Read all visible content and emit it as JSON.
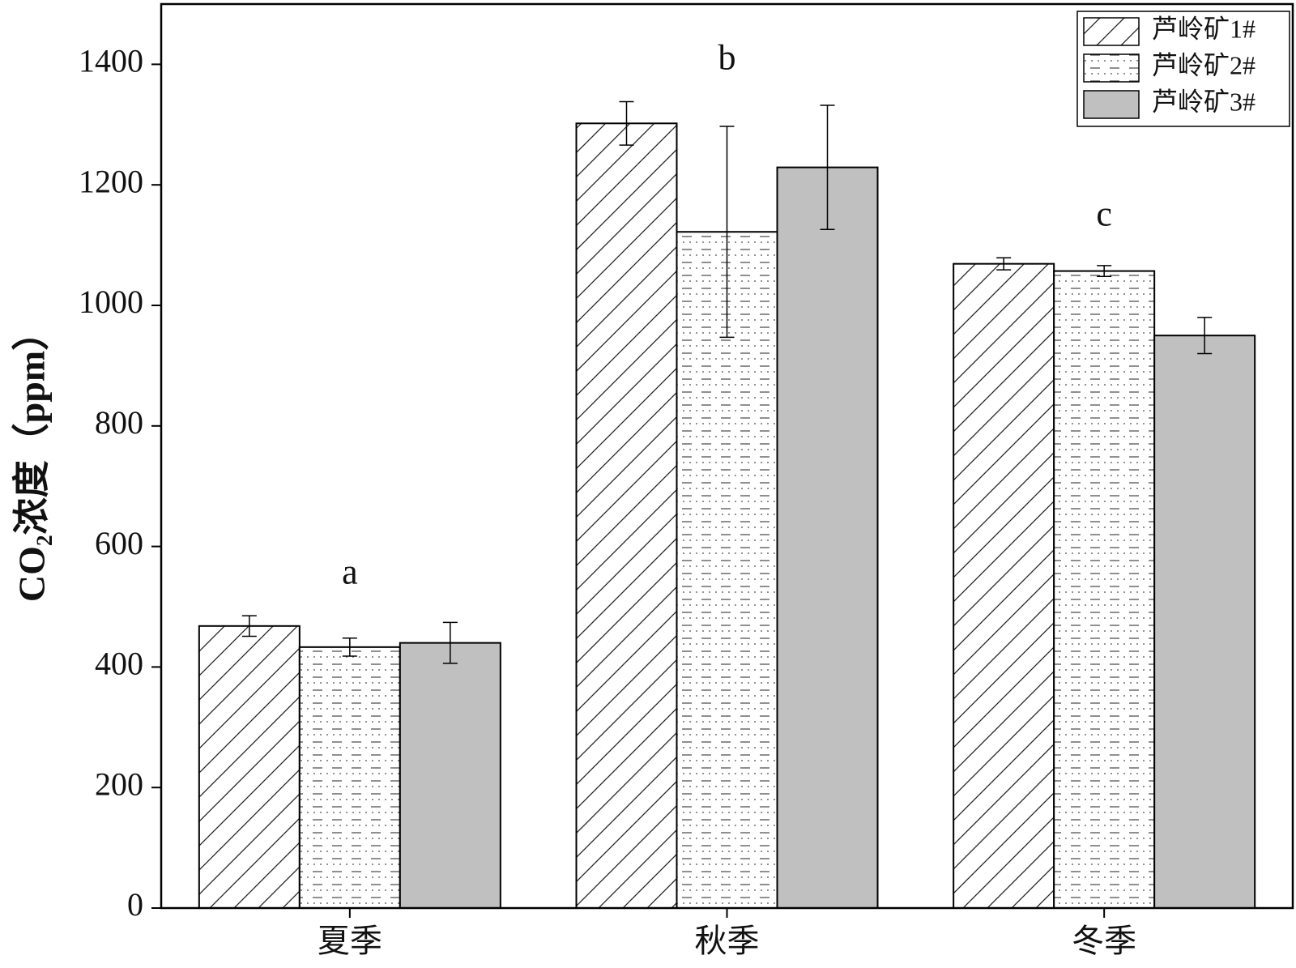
{
  "chart_data": {
    "type": "bar",
    "y_label": "CO₂浓度（ppm）",
    "categories": [
      "夏季",
      "秋季",
      "冬季"
    ],
    "series": [
      {
        "name": "芦岭矿1#",
        "color": "#ffffff",
        "pattern": "diagonal",
        "values": [
          468,
          1302,
          1069
        ],
        "errors": [
          17,
          36,
          10
        ]
      },
      {
        "name": "芦岭矿2#",
        "color": "#ffffff",
        "pattern": "dash-dot",
        "values": [
          433,
          1122,
          1057
        ],
        "errors": [
          15,
          175,
          9
        ]
      },
      {
        "name": "芦岭矿3#",
        "color": "#c0c0c0",
        "pattern": "none",
        "values": [
          440,
          1229,
          950
        ],
        "errors": [
          34,
          103,
          30
        ]
      }
    ],
    "annotations": [
      "a",
      "b",
      "c"
    ],
    "ylim": [
      0,
      1500
    ],
    "yticks": [
      0,
      200,
      400,
      600,
      800,
      1000,
      1200,
      1400
    ],
    "legend": "upper right",
    "grid": false
  }
}
